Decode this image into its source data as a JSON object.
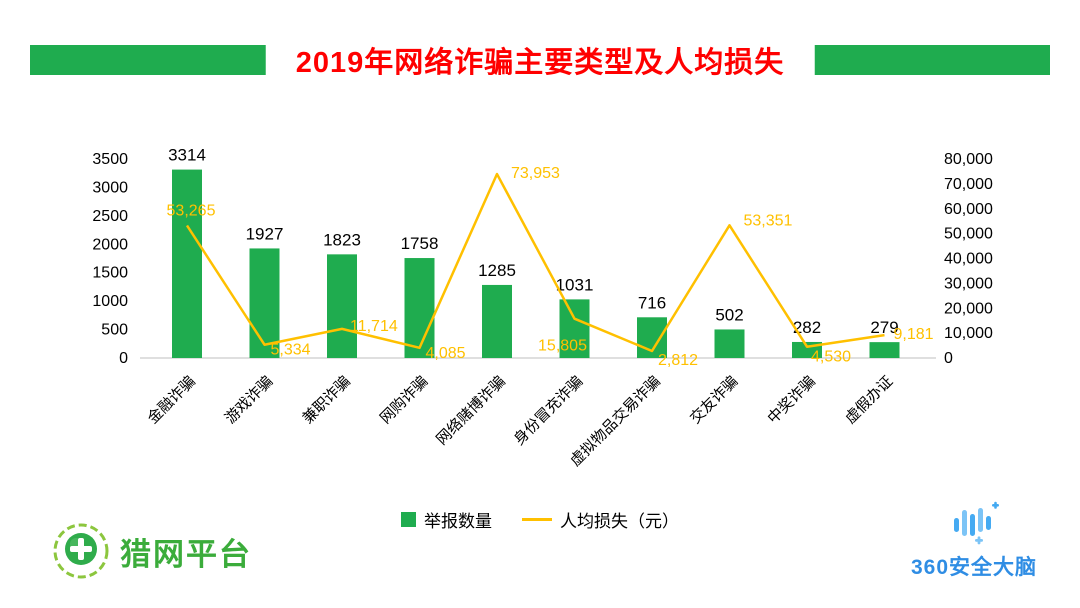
{
  "banner": {
    "title": "2019年网络诈骗主要类型及人均损失"
  },
  "colors": {
    "green": "#1FAC4F",
    "gold": "#FFC000",
    "title_red": "#FF0000",
    "axis_gray": "#BFBFBF",
    "text_black": "#000000",
    "liewang_green": "#3BAC3B",
    "blue_360": "#2F8DE4",
    "blue_360_light": "#45AAF2"
  },
  "chart_data": {
    "type": "bar",
    "subtype": "combo-bar-line",
    "title": "2019年网络诈骗主要类型及人均损失",
    "categories": [
      "金融诈骗",
      "游戏诈骗",
      "兼职诈骗",
      "网购诈骗",
      "网络赌博诈骗",
      "身份冒充诈骗",
      "虚拟物品交易诈骗",
      "交友诈骗",
      "中奖诈骗",
      "虚假办证"
    ],
    "series": [
      {
        "name": "举报数量",
        "type": "bar",
        "color": "#1FAC4F",
        "axis": "left",
        "values": [
          3314,
          1927,
          1823,
          1758,
          1285,
          1031,
          716,
          502,
          282,
          279
        ],
        "labels": [
          "3314",
          "1927",
          "1823",
          "1758",
          "1285",
          "1031",
          "716",
          "502",
          "282",
          "279"
        ]
      },
      {
        "name": "人均损失（元）",
        "type": "line",
        "color": "#FFC000",
        "axis": "right",
        "values": [
          53265,
          5334,
          11714,
          4085,
          73953,
          15805,
          2812,
          53351,
          4530,
          9181
        ],
        "labels": [
          "53,265",
          "5,334",
          "11,714",
          "4,085",
          "73,953",
          "15,805",
          "2,812",
          "53,351",
          "4,530",
          "9,181"
        ]
      }
    ],
    "left_axis": {
      "min": 0,
      "max": 3500,
      "step": 500,
      "tick_labels": [
        "0",
        "500",
        "1000",
        "1500",
        "2000",
        "2500",
        "3000",
        "3500"
      ]
    },
    "right_axis": {
      "min": 0,
      "max": 80000,
      "step": 10000,
      "tick_labels": [
        "0",
        "10,000",
        "20,000",
        "30,000",
        "40,000",
        "50,000",
        "60,000",
        "70,000",
        "80,000"
      ]
    },
    "grid": false,
    "legend_position": "bottom"
  },
  "legend": {
    "bar_label": "举报数量",
    "line_label": "人均损失（元）"
  },
  "footer": {
    "left_logo_text": "猎网平台",
    "right_logo_text": "360安全大脑"
  }
}
